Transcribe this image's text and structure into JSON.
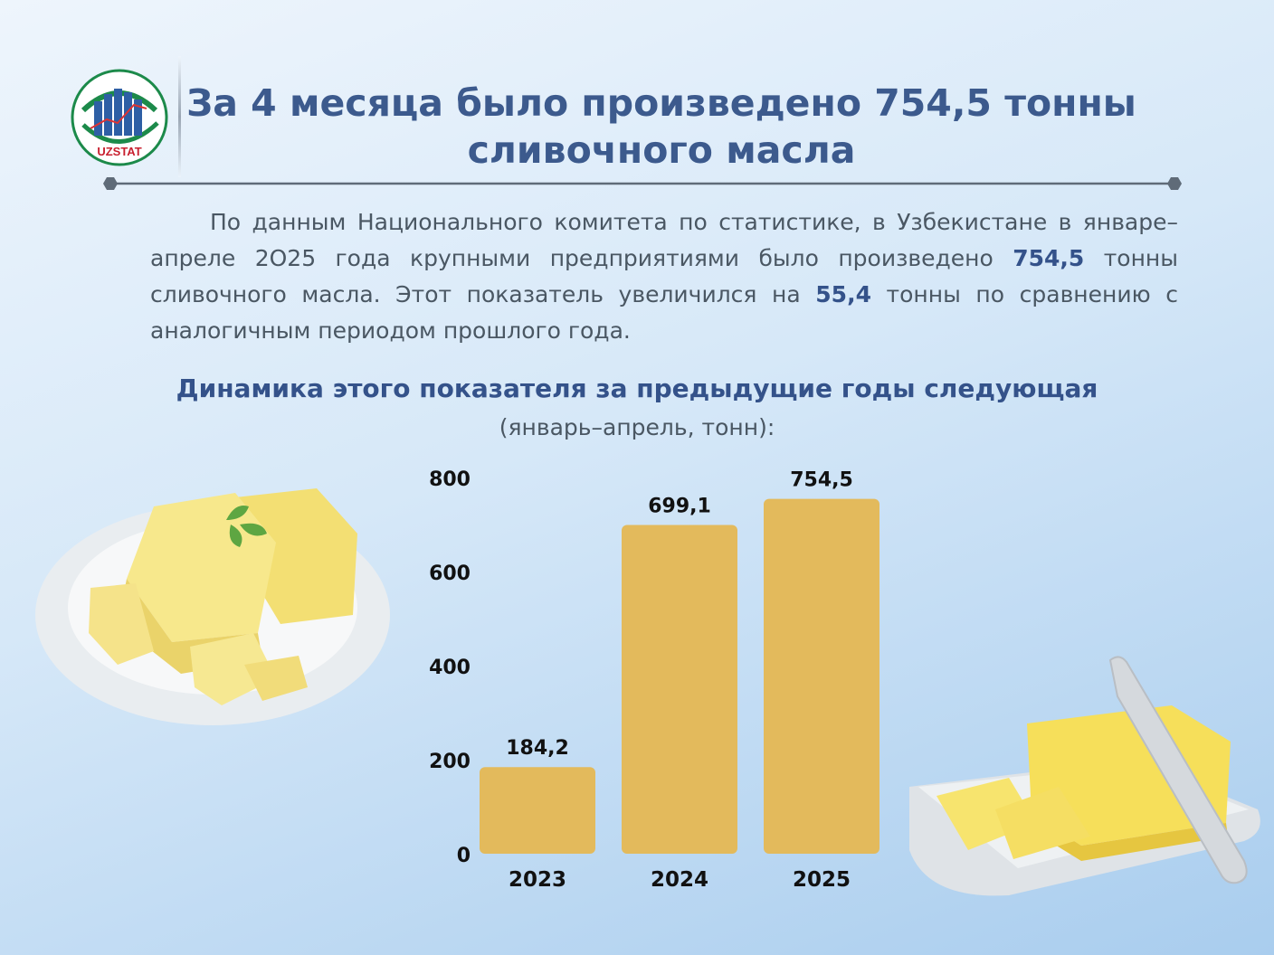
{
  "header": {
    "logo_text": "UZSTAT",
    "title_line1": "За 4 месяца было произведено 754,5 тонны",
    "title_line2": "сливочного масла"
  },
  "paragraph": {
    "part1": "По данным Национального комитета по статистике, в Узбекистане в январе–апреле 2О25 года крупными предприятиями было произведено ",
    "bold1": "754,5",
    "part2": " тонны сливочного масла. Этот показатель увеличился на ",
    "bold2": "55,4",
    "part3": " тонны по сравнению с аналогичным периодом прошлого года."
  },
  "chart_heading": "Динамика этого показателя за предыдущие годы следующая",
  "chart_unit": "(январь–апрель, тонн):",
  "colors": {
    "bar": "#e3ba5c",
    "title": "#3c5a8d",
    "text": "#4a5763"
  },
  "chart_data": {
    "type": "bar",
    "categories": [
      "2023",
      "2024",
      "2025"
    ],
    "values": [
      184.2,
      699.1,
      754.5
    ],
    "value_labels": [
      "184,2",
      "699,1",
      "754,5"
    ],
    "title": "",
    "xlabel": "",
    "ylabel": "",
    "ylim": [
      0,
      800
    ],
    "yticks": [
      0,
      200,
      400,
      600,
      800
    ],
    "grid": false,
    "legend": "none"
  }
}
